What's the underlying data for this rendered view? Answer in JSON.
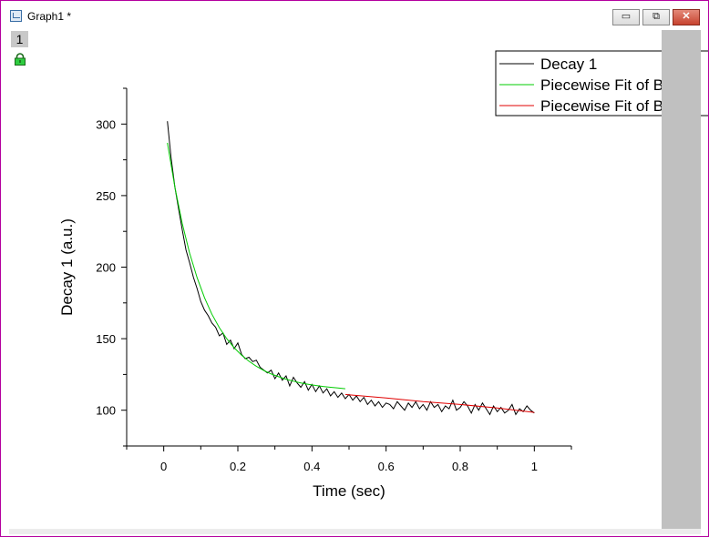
{
  "window": {
    "title": "Graph1 *",
    "layer_label": "1",
    "buttons": {
      "minimize": "▭",
      "restore": "⧉",
      "close": "✕"
    },
    "icons": [
      "graph-window-icon",
      "lock-icon"
    ]
  },
  "colors": {
    "data": "#000000",
    "fit_green": "#00cc00",
    "fit_red": "#e00000",
    "window_border": "#b4009e"
  },
  "chart_data": {
    "type": "line",
    "xlabel": "Time (sec)",
    "ylabel": "Decay 1 (a.u.)",
    "xlim": [
      -0.1,
      1.1
    ],
    "ylim": [
      75,
      325
    ],
    "xticks": [
      0,
      0.2,
      0.4,
      0.6,
      0.8,
      1
    ],
    "xtick_labels": [
      "0",
      "0.2",
      "0.4",
      "0.6",
      "0.8",
      "1"
    ],
    "yticks": [
      100,
      150,
      200,
      250,
      300
    ],
    "ytick_labels": [
      "100",
      "150",
      "200",
      "250",
      "300"
    ],
    "legend_position": "top-right",
    "series": [
      {
        "name": "Decay 1",
        "color": "#000000",
        "x": [
          0.01,
          0.02,
          0.03,
          0.04,
          0.05,
          0.06,
          0.07,
          0.08,
          0.09,
          0.1,
          0.11,
          0.12,
          0.13,
          0.14,
          0.15,
          0.16,
          0.17,
          0.18,
          0.19,
          0.2,
          0.21,
          0.22,
          0.23,
          0.24,
          0.25,
          0.26,
          0.27,
          0.28,
          0.29,
          0.3,
          0.31,
          0.32,
          0.33,
          0.34,
          0.35,
          0.36,
          0.37,
          0.38,
          0.39,
          0.4,
          0.41,
          0.42,
          0.43,
          0.44,
          0.45,
          0.46,
          0.47,
          0.48,
          0.49,
          0.5,
          0.51,
          0.52,
          0.53,
          0.54,
          0.55,
          0.56,
          0.57,
          0.58,
          0.59,
          0.6,
          0.61,
          0.62,
          0.63,
          0.64,
          0.65,
          0.66,
          0.67,
          0.68,
          0.69,
          0.7,
          0.71,
          0.72,
          0.73,
          0.74,
          0.75,
          0.76,
          0.77,
          0.78,
          0.79,
          0.8,
          0.81,
          0.82,
          0.83,
          0.84,
          0.85,
          0.86,
          0.87,
          0.88,
          0.89,
          0.9,
          0.91,
          0.92,
          0.93,
          0.94,
          0.95,
          0.96,
          0.97,
          0.98,
          0.99,
          1.0
        ],
        "y": [
          302,
          276,
          256,
          241,
          226,
          212,
          203,
          193,
          185,
          176,
          170,
          166,
          161,
          158,
          152,
          154,
          146,
          149,
          143,
          147,
          139,
          136,
          137,
          134,
          135,
          130,
          128,
          126,
          128,
          122,
          126,
          121,
          124,
          117,
          123,
          119,
          116,
          120,
          114,
          118,
          113,
          117,
          112,
          115,
          110,
          113,
          109,
          112,
          108,
          111,
          107,
          110,
          106,
          109,
          104,
          107,
          103,
          106,
          102,
          105,
          104,
          101,
          106,
          103,
          100,
          105,
          102,
          106,
          101,
          104,
          100,
          106,
          102,
          104,
          99,
          103,
          101,
          107,
          100,
          102,
          106,
          103,
          98,
          104,
          100,
          105,
          101,
          97,
          103,
          99,
          102,
          98,
          100,
          104,
          97,
          101,
          99,
          103,
          100,
          98
        ]
      },
      {
        "name": "Piecewise Fit of B\"D",
        "color": "#00cc00",
        "x": [
          0.01,
          0.03,
          0.05,
          0.07,
          0.09,
          0.11,
          0.13,
          0.15,
          0.17,
          0.19,
          0.21,
          0.23,
          0.25,
          0.27,
          0.29,
          0.31,
          0.33,
          0.35,
          0.37,
          0.39,
          0.41,
          0.43,
          0.45,
          0.47,
          0.49
        ],
        "y": [
          286.9,
          255.9,
          230.5,
          209.7,
          192.6,
          178.6,
          167.1,
          157.7,
          150.0,
          143.7,
          138.5,
          134.2,
          130.7,
          127.8,
          125.3,
          123.4,
          121.7,
          120.3,
          119.1,
          118.1,
          117.3,
          116.6,
          116.0,
          115.5,
          115.0
        ]
      },
      {
        "name": "Piecewise Fit of B\"D",
        "color": "#e00000",
        "x": [
          0.49,
          0.6,
          0.7,
          0.8,
          0.9,
          1.0
        ],
        "y": [
          111.0,
          108.5,
          106.0,
          104.0,
          101.5,
          98.5
        ]
      }
    ]
  }
}
